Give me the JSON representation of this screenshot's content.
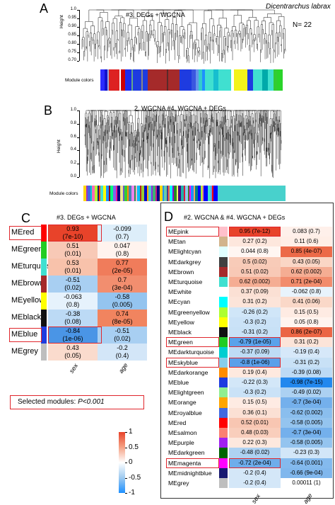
{
  "panelA": {
    "letter": "A",
    "title": "#3. DEGs + WGCNA",
    "species": "Dicentrarchus labrax",
    "n_label": "N= 22",
    "ylabel": "Height",
    "ticks": [
      "1.0",
      "0.95",
      "0.90",
      "0.85",
      "0.80",
      "0.75",
      "0.70"
    ],
    "module_label": "Module colors",
    "color_bar": [
      [
        "#2a2aff",
        3
      ],
      [
        "#11c",
        2
      ],
      [
        "#9ad",
        1
      ],
      [
        "#d22",
        8
      ],
      [
        "#fff",
        1
      ],
      [
        "#c00",
        3
      ],
      [
        "#1a2aee",
        5
      ],
      [
        "#6a8",
        1
      ],
      [
        "#1e3be0",
        6
      ],
      [
        "#888",
        1
      ],
      [
        "#1e3be0",
        4
      ],
      [
        "#a52a2a",
        14
      ],
      [
        "#5a2a2a",
        1
      ],
      [
        "#a52a2a",
        8
      ],
      [
        "#1e3be0",
        9
      ],
      [
        "#3a57e0",
        3
      ],
      [
        "#6495ed",
        2
      ],
      [
        "#3cc",
        3
      ],
      [
        "#1e90ff",
        2
      ],
      [
        "#40e0d0",
        6
      ],
      [
        "#17becf",
        4
      ],
      [
        "#40e0d0",
        9
      ],
      [
        "#fff",
        2
      ],
      [
        "#f3f31a",
        10
      ],
      [
        "#1e3be0",
        4
      ],
      [
        "#40e0d0",
        7
      ],
      [
        "#0aa",
        4
      ],
      [
        "#40e0d0",
        4
      ],
      [
        "#3c3",
        3
      ],
      [
        "#2ad42a",
        4
      ]
    ]
  },
  "panelB": {
    "letter": "B",
    "title": "2. WGCNA  #4. WGCNA + DEGs",
    "ylabel": "Height",
    "ticks": [
      "1.0",
      "0.8",
      "0.6",
      "0.4",
      "0.2",
      "0.0"
    ],
    "module_label": "Module colors",
    "color_bar": [
      [
        "#ffd700",
        2
      ],
      [
        "#9932cc",
        1
      ],
      [
        "#4169e1",
        2
      ],
      [
        "#00ced1",
        1
      ],
      [
        "#ff69b4",
        2
      ],
      [
        "#adff2f",
        2
      ],
      [
        "#191970",
        1
      ],
      [
        "#ff4500",
        1
      ],
      [
        "#40e0d0",
        2
      ],
      [
        "#ffff00",
        2
      ],
      [
        "#1e90ff",
        2
      ],
      [
        "#8b0000",
        1
      ],
      [
        "#00ff7f",
        2
      ],
      [
        "#7b68ee",
        2
      ],
      [
        "#ff1493",
        1
      ],
      [
        "#000080",
        2
      ],
      [
        "#f0e68c",
        2
      ],
      [
        "#6a5acd",
        1
      ],
      [
        "#32cd32",
        2
      ],
      [
        "#ff8c00",
        1
      ],
      [
        "#4682b4",
        2
      ],
      [
        "#ee82ee",
        2
      ],
      [
        "#2e8b57",
        1
      ],
      [
        "#ffb6c1",
        1
      ],
      [
        "#00bfff",
        2
      ],
      [
        "#b22222",
        1
      ],
      [
        "#9acd32",
        2
      ],
      [
        "#0000cd",
        2
      ],
      [
        "#ffa500",
        1
      ],
      [
        "#48d1cc",
        2
      ],
      [
        "#8a2be2",
        1
      ],
      [
        "#3cb371",
        2
      ],
      [
        "#c71585",
        1
      ],
      [
        "#00008b",
        2
      ],
      [
        "#ffd700",
        2
      ],
      [
        "#1e90ff",
        1
      ],
      [
        "#66cdaa",
        2
      ],
      [
        "#483d8b",
        1
      ],
      [
        "#ff6347",
        1
      ],
      [
        "#00ffff",
        2
      ],
      [
        "#9400d3",
        1
      ],
      [
        "#228b22",
        2
      ],
      [
        "#ffff66",
        1
      ],
      [
        "#4b0082",
        2
      ],
      [
        "#20b2aa",
        2
      ],
      [
        "#dc143c",
        1
      ],
      [
        "#87ceeb",
        2
      ],
      [
        "#556b2f",
        1
      ],
      [
        "#ff00ff",
        1
      ],
      [
        "#1e90ff",
        2
      ],
      [
        "#f4a460",
        1
      ],
      [
        "#008080",
        2
      ],
      [
        "#0000ff",
        2
      ],
      [
        "#adff2f",
        1
      ],
      [
        "#e9967a",
        1
      ],
      [
        "#0000ff",
        3
      ],
      [
        "#40e0d0",
        2
      ],
      [
        "#6495ed",
        1
      ],
      [
        "#ff0000",
        1
      ],
      [
        "#0000ff",
        3
      ],
      [
        "#48d1cc",
        48
      ]
    ]
  },
  "panelC": {
    "letter": "C",
    "title": "#3. DEGs + WGCNA",
    "columns": [
      "sex",
      "age"
    ],
    "rows": [
      {
        "name": "MEred",
        "color": "#ff0000",
        "cells": [
          [
            "0.93",
            "(7e-10)",
            "#e8432a"
          ],
          [
            "-0.099",
            "(0.7)",
            "#ddeefa"
          ]
        ],
        "boxed": true
      },
      {
        "name": "MEgreen",
        "color": "#22cc22",
        "cells": [
          [
            "0.51",
            "(0.01)",
            "#f8c9b6"
          ],
          [
            "0.047",
            "(0.8)",
            "#fff3ee"
          ]
        ],
        "boxed": false
      },
      {
        "name": "MEturquoise",
        "color": "#40e0d0",
        "cells": [
          [
            "0.53",
            "(0.01)",
            "#f8c2ab"
          ],
          [
            "0.77",
            "(2e-05)",
            "#f07c5b"
          ]
        ],
        "boxed": false
      },
      {
        "name": "MEbrown",
        "color": "#a52a2a",
        "cells": [
          [
            "-0.51",
            "(0.02)",
            "#a8cff2"
          ],
          [
            "0.7",
            "(3e-04)",
            "#f28e6f"
          ]
        ],
        "boxed": false
      },
      {
        "name": "MEyellow",
        "color": "#ffff00",
        "cells": [
          [
            "-0.063",
            "(0.8)",
            "#e6f2fc"
          ],
          [
            "-0.58",
            "(0.005)",
            "#94c4ef"
          ]
        ],
        "boxed": false
      },
      {
        "name": "MEblack",
        "color": "#111111",
        "cells": [
          [
            "-0.38",
            "(0.08)",
            "#bcdaf5"
          ],
          [
            "0.74",
            "(8e-05)",
            "#f1845f"
          ]
        ],
        "boxed": false
      },
      {
        "name": "MEblue",
        "color": "#1e3be0",
        "cells": [
          [
            "-0.84",
            "(1e-06)",
            "#4a95e6"
          ],
          [
            "-0.51",
            "(0.02)",
            "#a8cff2"
          ]
        ],
        "boxed": true
      },
      {
        "name": "MEgrey",
        "color": "#bebebe",
        "cells": [
          [
            "0.43",
            "(0.05)",
            "#fadbcd"
          ],
          [
            "-0.2",
            "(0.4)",
            "#d3e6f8"
          ]
        ],
        "boxed": false
      }
    ],
    "selected_note": "Selected modules: ",
    "selected_p": "P<0.001"
  },
  "legend": {
    "ticks": [
      "1",
      "0.5",
      "0",
      "-0.5",
      "-1"
    ],
    "colors": [
      "#e8432a",
      "#f5a285",
      "#ffffff",
      "#9ecaf0",
      "#1e90ff"
    ]
  },
  "panelD": {
    "letter": "D",
    "title": "#2. WGCNA  & #4. WGCNA + DEGs",
    "columns": [
      "sex",
      "age"
    ],
    "rows": [
      {
        "name": "MEpink",
        "color": "#ffc0cb",
        "cells": [
          [
            "0.95 (7e-12)",
            "#e8432a"
          ],
          [
            "0.083 (0.7)",
            "#fff0ea"
          ]
        ],
        "boxed": true
      },
      {
        "name": "MEtan",
        "color": "#d2b48c",
        "cells": [
          [
            "0.27 (0.2)",
            "#fde7dd"
          ],
          [
            "0.11 (0.6)",
            "#ffeee6"
          ]
        ],
        "boxed": false
      },
      {
        "name": "MElightcyan",
        "color": "#e0ffff",
        "cells": [
          [
            "0.044 (0.8)",
            "#fff6f2"
          ],
          [
            "0.85 (4e-07)",
            "#ec6a48"
          ]
        ],
        "boxed": false
      },
      {
        "name": "MEdarkgrey",
        "color": "#404040",
        "cells": [
          [
            "0.5 (0.02)",
            "#f8cbb8"
          ],
          [
            "0.43 (0.05)",
            "#fad6c5"
          ]
        ],
        "boxed": false
      },
      {
        "name": "MEbrown",
        "color": "#a52a2a",
        "cells": [
          [
            "0.51 (0.02)",
            "#f8c9b6"
          ],
          [
            "0.62 (0.002)",
            "#f5ad93"
          ]
        ],
        "boxed": false
      },
      {
        "name": "MEturquoise",
        "color": "#40e0d0",
        "cells": [
          [
            "0.62 (0.002)",
            "#f5ad93"
          ],
          [
            "0.71 (2e-04)",
            "#f28c6d"
          ]
        ],
        "boxed": false
      },
      {
        "name": "MEwhite",
        "color": "#ffffff",
        "cells": [
          [
            "0.37 (0.09)",
            "#fbe0d4"
          ],
          [
            "-0.062 (0.8)",
            "#e8f3fc"
          ]
        ],
        "boxed": false
      },
      {
        "name": "MEcyan",
        "color": "#00ffff",
        "cells": [
          [
            "0.31 (0.2)",
            "#fce4d9"
          ],
          [
            "0.41 (0.06)",
            "#fad8c8"
          ]
        ],
        "boxed": false
      },
      {
        "name": "MEgreenyellow",
        "color": "#adff2f",
        "cells": [
          [
            "-0.26 (0.2)",
            "#d0e6f8"
          ],
          [
            "0.15 (0.5)",
            "#feebe3"
          ]
        ],
        "boxed": false
      },
      {
        "name": "MEyellow",
        "color": "#ffff00",
        "cells": [
          [
            "-0.3 (0.2)",
            "#cae2f7"
          ],
          [
            "0.05 (0.8)",
            "#fff4ef"
          ]
        ],
        "boxed": false
      },
      {
        "name": "MEblack",
        "color": "#111111",
        "cells": [
          [
            "-0.31 (0.2)",
            "#c8e1f6"
          ],
          [
            "0.86 (2e-07)",
            "#eb6544"
          ]
        ],
        "boxed": false
      },
      {
        "name": "MEgreen",
        "color": "#22cc22",
        "cells": [
          [
            "-0.79 (1e-05)",
            "#5aa2ea"
          ],
          [
            "0.31 (0.2)",
            "#fce4d9"
          ]
        ],
        "boxed": true
      },
      {
        "name": "MEdarkturquoise",
        "color": "#00ced1",
        "cells": [
          [
            "-0.37 (0.09)",
            "#bedcf5"
          ],
          [
            "-0.19 (0.4)",
            "#d6e8f9"
          ]
        ],
        "boxed": false
      },
      {
        "name": "MEskyblue",
        "color": "#87ceeb",
        "cells": [
          [
            "-0.8 (1e-06)",
            "#5aa0ea"
          ],
          [
            "-0.31 (0.2)",
            "#c8e1f6"
          ]
        ],
        "boxed": true
      },
      {
        "name": "MEdarkorange",
        "color": "#ff8c00",
        "cells": [
          [
            "0.19 (0.4)",
            "#fee9df"
          ],
          [
            "-0.39 (0.08)",
            "#bcdaf5"
          ]
        ],
        "boxed": false
      },
      {
        "name": "MEblue",
        "color": "#1e3be0",
        "cells": [
          [
            "-0.22 (0.3)",
            "#d3e7f8"
          ],
          [
            "-0.98 (7e-15)",
            "#2288ee"
          ]
        ],
        "boxed": false
      },
      {
        "name": "MElightgreen",
        "color": "#90ee90",
        "cells": [
          [
            "-0.3 (0.2)",
            "#cae2f7"
          ],
          [
            "-0.49 (0.02)",
            "#acd1f2"
          ]
        ],
        "boxed": false
      },
      {
        "name": "MEorange",
        "color": "#ffa500",
        "cells": [
          [
            "0.15 (0.5)",
            "#feebe3"
          ],
          [
            "-0.7 (3e-04)",
            "#74b0ec"
          ]
        ],
        "boxed": false
      },
      {
        "name": "MEroyalblue",
        "color": "#4169e1",
        "cells": [
          [
            "0.36 (0.1)",
            "#fbe0d4"
          ],
          [
            "-0.62 (0.002)",
            "#8abeee"
          ]
        ],
        "boxed": false
      },
      {
        "name": "MEred",
        "color": "#ff0000",
        "cells": [
          [
            "0.52 (0.01)",
            "#f8c6b2"
          ],
          [
            "-0.58 (0.005)",
            "#94c4ef"
          ]
        ],
        "boxed": false
      },
      {
        "name": "MEsalmon",
        "color": "#fa8072",
        "cells": [
          [
            "0.48 (0.03)",
            "#f9cebc"
          ],
          [
            "-0.7 (3e-04)",
            "#74b0ec"
          ]
        ],
        "boxed": false
      },
      {
        "name": "MEpurple",
        "color": "#a020f0",
        "cells": [
          [
            "0.22 (0.3)",
            "#fde8de"
          ],
          [
            "-0.58 (0.005)",
            "#94c4ef"
          ]
        ],
        "boxed": false
      },
      {
        "name": "MEdarkgreen",
        "color": "#006400",
        "cells": [
          [
            "-0.48 (0.02)",
            "#aed2f2"
          ],
          [
            "-0.23 (0.3)",
            "#d2e6f8"
          ]
        ],
        "boxed": false
      },
      {
        "name": "MEmagenta",
        "color": "#ff00ff",
        "cells": [
          [
            "-0.72 (2e-04)",
            "#6eadeb"
          ],
          [
            "-0.64 (0.001)",
            "#84baee"
          ]
        ],
        "boxed": true
      },
      {
        "name": "MEmidnightblue",
        "color": "#191970",
        "cells": [
          [
            "-0.2 (0.4)",
            "#d4e7f8"
          ],
          [
            "-0.66 (9e-04)",
            "#80b7ed"
          ]
        ],
        "boxed": false
      },
      {
        "name": "MEgrey",
        "color": "#bebebe",
        "cells": [
          [
            "-0.2 (0.4)",
            "#d4e7f8"
          ],
          [
            "0.00011 (1)",
            "#ffffff"
          ]
        ],
        "boxed": false
      }
    ]
  }
}
